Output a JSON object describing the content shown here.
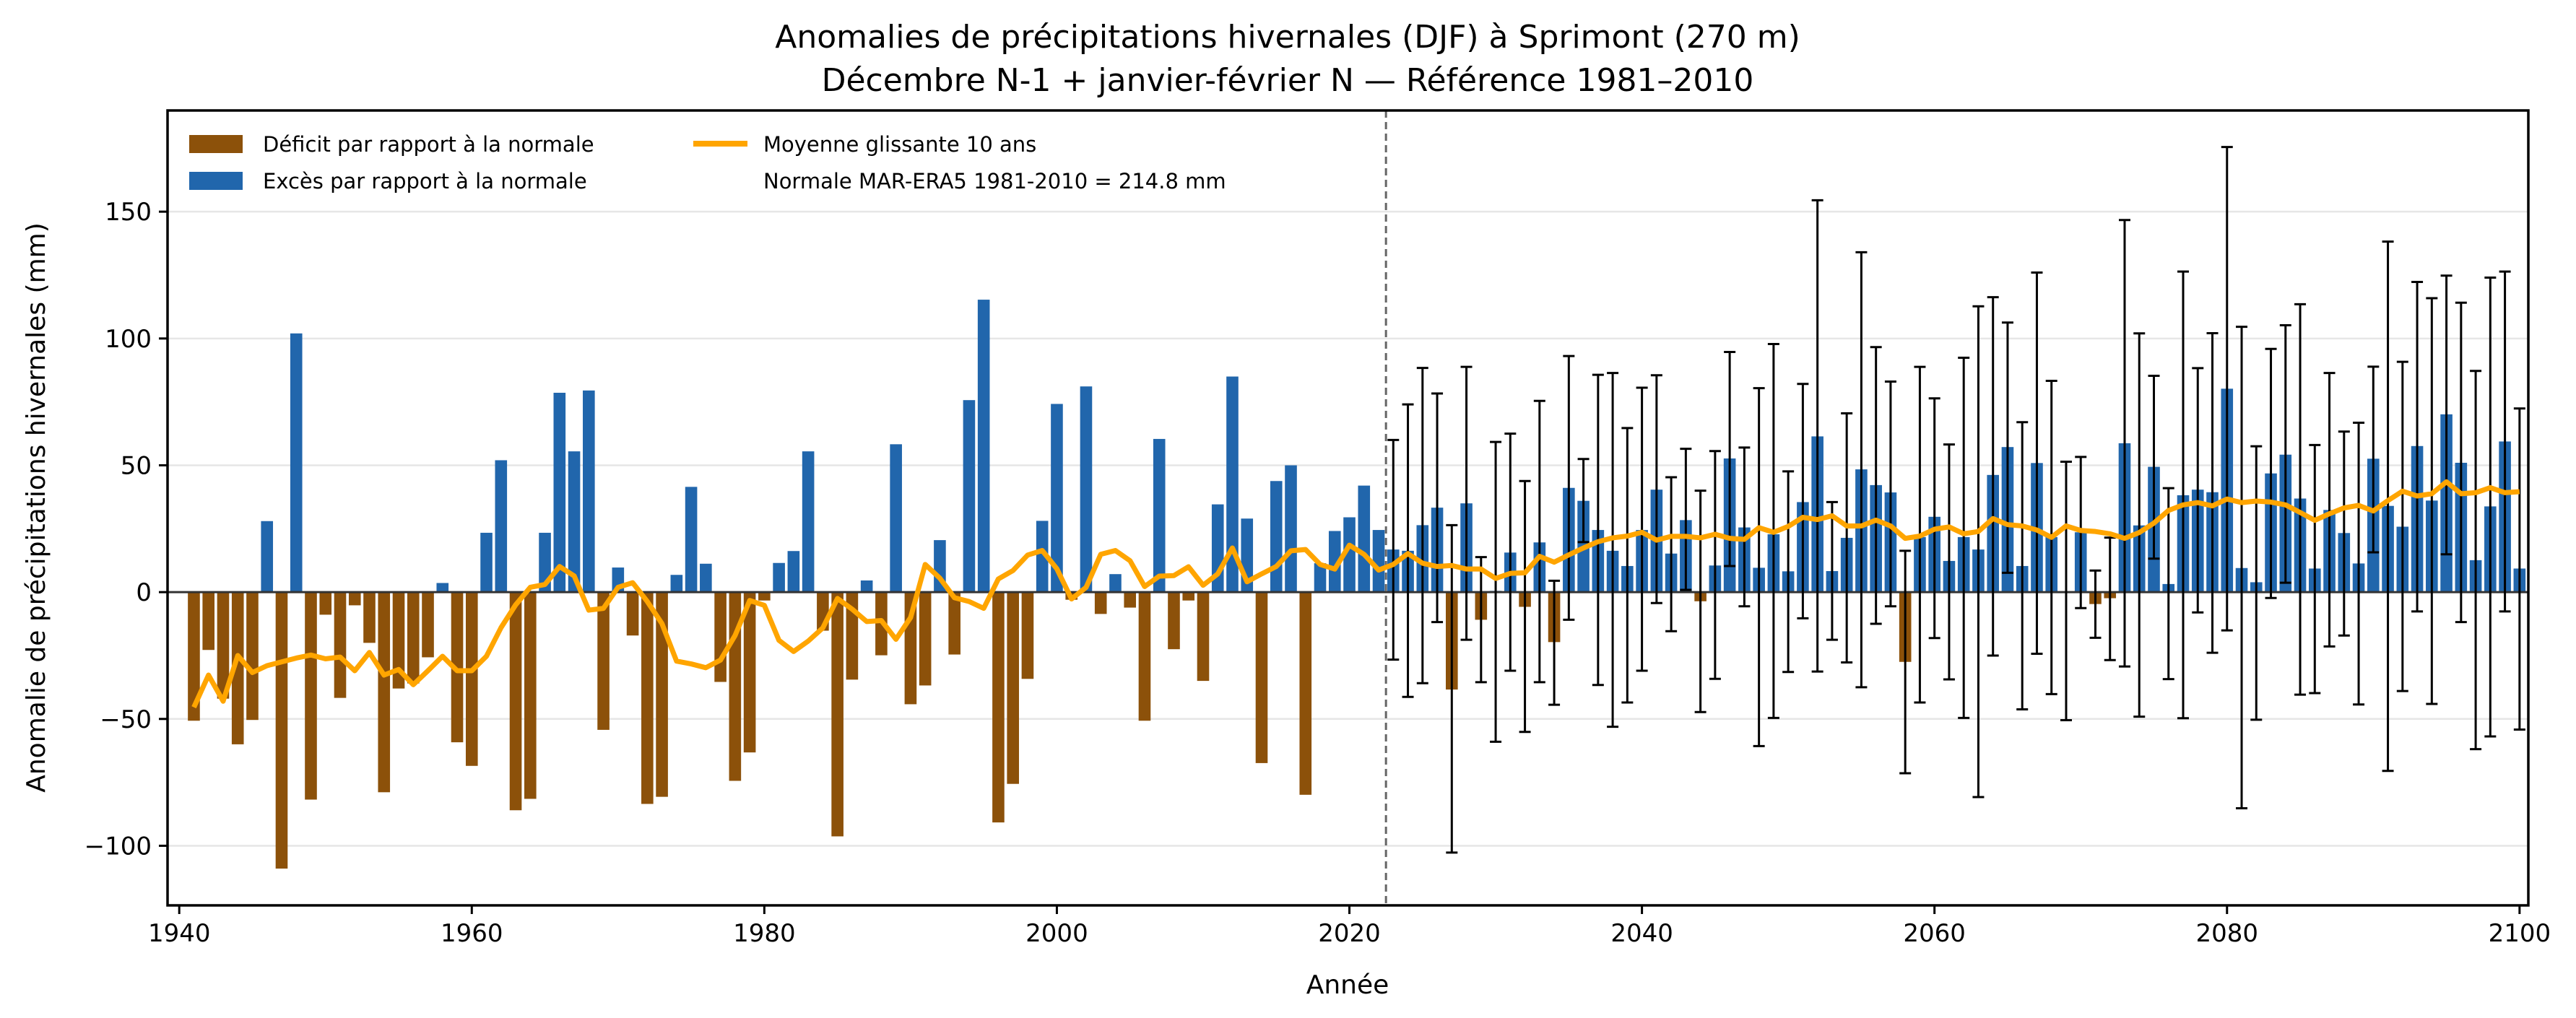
{
  "chart_data": {
    "type": "bar",
    "title": "Anomalies de précipitations hivernales (DJF) à Sprimont (270 m)",
    "subtitle": "Décembre N-1 + janvier-février N — Référence 1981–2010",
    "xlabel": "Année",
    "ylabel": "Anomalie de précipitations hivernales (mm)",
    "xlim": [
      1939.2,
      2100.6
    ],
    "ylim": [
      -123.5,
      189.9
    ],
    "xticks": [
      1940,
      1960,
      1980,
      2000,
      2020,
      2040,
      2060,
      2080,
      2100
    ],
    "yticks": [
      -100,
      -50,
      0,
      50,
      100,
      150
    ],
    "ytick_labels": [
      "−100",
      "−50",
      "0",
      "50",
      "100",
      "150"
    ],
    "grid": "horizontal",
    "projection_start_marker": 2022.5,
    "colors": {
      "deficit": "#8c510a",
      "excess": "#2166ac",
      "moving_average": "#ffa500",
      "errorbar": "#000000",
      "divider": "#666666",
      "grid": "#e6e6e6"
    },
    "legend": {
      "placement": "top-left",
      "entries": [
        {
          "label": "Déficit par rapport à la normale",
          "kind": "patch",
          "color_key": "deficit"
        },
        {
          "label": "Excès par rapport à la normale",
          "kind": "patch",
          "color_key": "excess"
        },
        {
          "label": "Moyenne glissante 10 ans",
          "kind": "line",
          "color_key": "moving_average"
        },
        {
          "label": "Normale MAR-ERA5 1981-2010 = 214.8 mm",
          "kind": "text"
        }
      ]
    },
    "normal_mm": 214.8,
    "years_start": 1941,
    "values": [
      -50.7,
      -22.8,
      -42,
      -60,
      -50.4,
      28,
      -109,
      102,
      -81.8,
      -8.9,
      -41.7,
      -5.2,
      -20,
      -78.9,
      -38,
      -36,
      -25.7,
      3.6,
      -59.2,
      -68.5,
      23.4,
      52,
      -86,
      -81.5,
      23.4,
      78.6,
      55.5,
      79.5,
      -54.3,
      9.7,
      -17.1,
      -83.5,
      -80.7,
      6.8,
      41.5,
      11.2,
      -35.4,
      -74.4,
      -63.2,
      -3.3,
      11.5,
      16.2,
      55.5,
      -15.2,
      -96.3,
      -34.5,
      4.6,
      -24.9,
      58.3,
      -44.2,
      -36.8,
      20.5,
      -24.6,
      75.7,
      115.3,
      -90.8,
      -75.6,
      -34.2,
      28.1,
      74.2,
      -3,
      81.1,
      -8.6,
      7.1,
      -6.1,
      -50.7,
      60.4,
      -22.5,
      -3.3,
      -35,
      34.6,
      85,
      29,
      -67.4,
      43.8,
      50,
      -79.9,
      11.4,
      24.1,
      29.5,
      42,
      24.5,
      16.8,
      16.3,
      26.4,
      33.3,
      -38.4,
      35,
      -10.9,
      0.5,
      15.6,
      -5.8,
      19.6,
      -19.7,
      41.1,
      36,
      24.5,
      16.3,
      10.3,
      24.5,
      40.4,
      15.2,
      28.4,
      -3.6,
      10.5,
      52.7,
      25.5,
      9.6,
      22.8,
      8.2,
      35.5,
      61.4,
      8.3,
      21.4,
      48.4,
      42.2,
      39.3,
      -27.5,
      21.7,
      29.7,
      12.3,
      21.7,
      16.8,
      46.2,
      57.2,
      10.3,
      50.9,
      21.7,
      0.3,
      23.6,
      -4.7,
      -2.4,
      58.7,
      26.3,
      49.4,
      3.2,
      38.2,
      40.4,
      39.4,
      80.2,
      9.5,
      3.9,
      46.8,
      54.2,
      36.9,
      9.3,
      32.4,
      23.3,
      11.3,
      52.6,
      34,
      25.8,
      57.6,
      36.1,
      70.1,
      51,
      12.6,
      33.8,
      59.4,
      9.3
    ],
    "moving_average": [
      -45.4,
      -32.7,
      -43,
      -25,
      -31.7,
      -29,
      -27.5,
      -26,
      -24.8,
      -26.3,
      -25.6,
      -31,
      -23.8,
      -32.7,
      -30.5,
      -36.5,
      -31,
      -25.3,
      -31,
      -31,
      -25.3,
      -14,
      -5,
      1.9,
      3,
      10.1,
      6.4,
      -7.1,
      -6.4,
      1.9,
      3.7,
      -3.7,
      -12.4,
      -27.2,
      -28.3,
      -29.8,
      -26.8,
      -17.1,
      -3.3,
      -5.2,
      -19,
      -23.4,
      -19.3,
      -14.1,
      -2.5,
      -6.7,
      -11.6,
      -11.2,
      -18.6,
      -10,
      10.9,
      5.5,
      -2.2,
      -3.7,
      -6.4,
      5.2,
      8.5,
      14.6,
      16.4,
      9.2,
      -2.7,
      1.9,
      14.9,
      16.4,
      12.4,
      2.2,
      6.3,
      6.5,
      10,
      2.7,
      7.2,
      17.4,
      4.1,
      7.2,
      10.1,
      16.3,
      16.8,
      10.9,
      9.1,
      18.5,
      14.9,
      8.7,
      10.9,
      15.2,
      11.4,
      10.1,
      10.5,
      9.1,
      9.1,
      5.4,
      7.4,
      7.6,
      14.1,
      11.8,
      14.7,
      17.4,
      19.9,
      21.4,
      22.1,
      23.6,
      20.5,
      22,
      22,
      21.4,
      22.8,
      21.2,
      20.8,
      25.4,
      23.6,
      25.9,
      29.5,
      28.6,
      30.1,
      26.1,
      26.1,
      28.4,
      26.1,
      21.2,
      22.1,
      24.8,
      25.7,
      23,
      23.9,
      29,
      26.6,
      26.1,
      24.5,
      21.6,
      26.1,
      24.3,
      23.9,
      23,
      21.2,
      23.5,
      27.2,
      32.2,
      34.4,
      35.3,
      34,
      36.7,
      35.3,
      35.9,
      35.5,
      34.4,
      31.4,
      28.3,
      30.9,
      33.2,
      34.2,
      32,
      36.1,
      39.8,
      37.9,
      38.8,
      43.5,
      38.8,
      39.2,
      41.2,
      39.2,
      39.6
    ],
    "errorbars_start": 2023,
    "errorbars": [
      [
        60,
        -26.6
      ],
      [
        74,
        -41.3
      ],
      [
        88.4,
        -35.9
      ],
      [
        78.3,
        -11.8
      ],
      [
        26.4,
        -102.7
      ],
      [
        88.8,
        -18.8
      ],
      [
        13.8,
        -35.5
      ],
      [
        59.2,
        -59
      ],
      [
        62.5,
        -31
      ],
      [
        43.8,
        -55.1
      ],
      [
        75.4,
        -35.5
      ],
      [
        4.5,
        -44.4
      ],
      [
        93.1,
        -10.9
      ],
      [
        52.5,
        19.7
      ],
      [
        85.7,
        -36.6
      ],
      [
        86.4,
        -53.1
      ],
      [
        64.7,
        -43.5
      ],
      [
        80.6,
        -31
      ],
      [
        85.5,
        -4.3
      ],
      [
        45.3,
        -15.4
      ],
      [
        56.5,
        0.9
      ],
      [
        40,
        -47.3
      ],
      [
        55.6,
        -34.2
      ],
      [
        94.7,
        10.3
      ],
      [
        57,
        -5.6
      ],
      [
        80.4,
        -60.7
      ],
      [
        97.8,
        -49.6
      ],
      [
        47.6,
        -31.5
      ],
      [
        82.1,
        -10.3
      ],
      [
        154.5,
        -31.3
      ],
      [
        35.5,
        -18.8
      ],
      [
        70.5,
        -27.7
      ],
      [
        134,
        -37.5
      ],
      [
        96.6,
        -12.5
      ],
      [
        83,
        -5.6
      ],
      [
        16.3,
        -71.4
      ],
      [
        88.8,
        -43.5
      ],
      [
        76.4,
        -18.1
      ],
      [
        58.2,
        -34.4
      ],
      [
        92.4,
        -49.6
      ],
      [
        112.7,
        -80.8
      ],
      [
        116.3,
        -25
      ],
      [
        106.3,
        7.6
      ],
      [
        67,
        -46.2
      ],
      [
        126,
        -24.3
      ],
      [
        83.3,
        -40.2
      ],
      [
        51.4,
        -50.5
      ],
      [
        53.3,
        -6.3
      ],
      [
        8.5,
        -18
      ],
      [
        21.5,
        -26.8
      ],
      [
        146.7,
        -29.3
      ],
      [
        102,
        -49.1
      ],
      [
        85.3,
        13.2
      ],
      [
        41,
        -34.3
      ],
      [
        126.4,
        -49.7
      ],
      [
        88.3,
        -8
      ],
      [
        102.1,
        -23.9
      ],
      [
        175.5,
        -15.1
      ],
      [
        104.6,
        -85.2
      ],
      [
        57.5,
        -50.3
      ],
      [
        95.9,
        -2.3
      ],
      [
        105.2,
        3.7
      ],
      [
        113.5,
        -40.4
      ],
      [
        58,
        -39.8
      ],
      [
        86.4,
        -21.4
      ],
      [
        63.3,
        -17.1
      ],
      [
        66.8,
        -44.3
      ],
      [
        88.9,
        15.7
      ],
      [
        138.2,
        -70.5
      ],
      [
        90.8,
        -39
      ],
      [
        122.3,
        -7.6
      ],
      [
        115.9,
        -44.1
      ],
      [
        124.8,
        14.9
      ],
      [
        114.1,
        -11.8
      ],
      [
        87.2,
        -61.9
      ],
      [
        124,
        -56.9
      ],
      [
        126.4,
        -7.6
      ],
      [
        72.4,
        -54.2
      ]
    ]
  }
}
